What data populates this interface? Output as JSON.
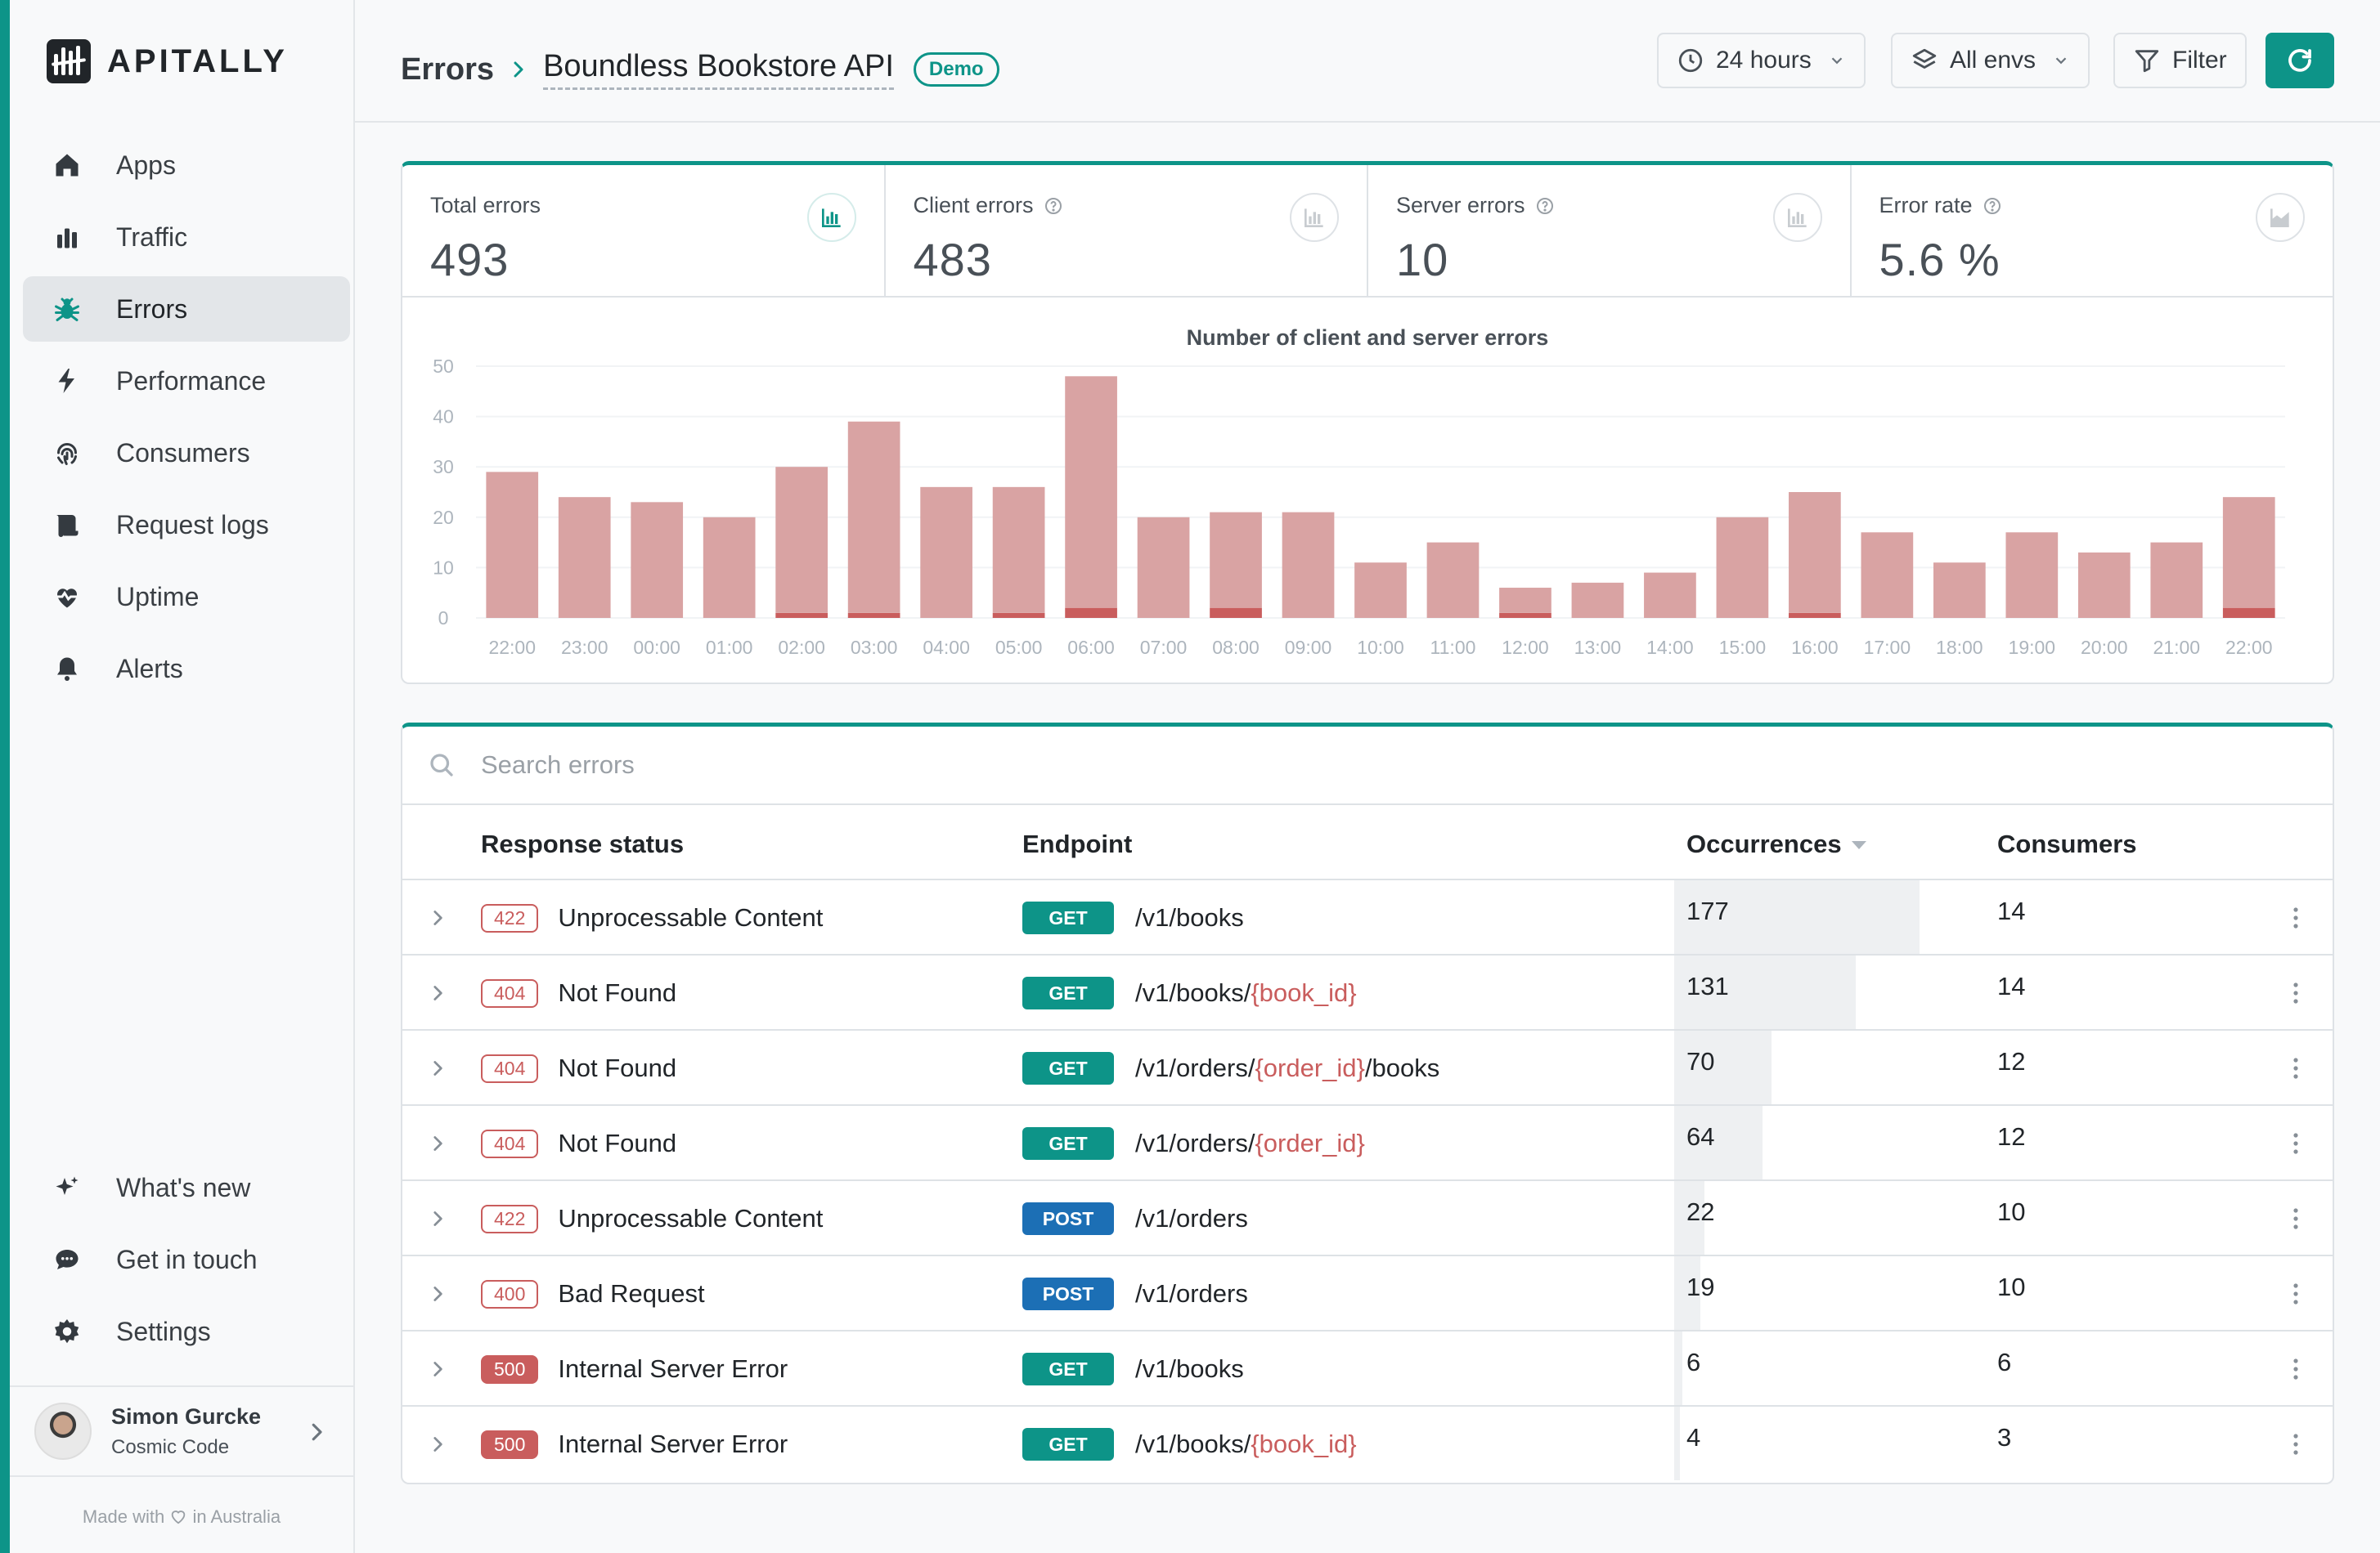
{
  "app": {
    "name": "APITALLY"
  },
  "sidebar": {
    "items": [
      {
        "label": "Apps",
        "icon": "home-icon",
        "active": false
      },
      {
        "label": "Traffic",
        "icon": "bar-chart-icon",
        "active": false
      },
      {
        "label": "Errors",
        "icon": "bug-icon",
        "active": true
      },
      {
        "label": "Performance",
        "icon": "bolt-icon",
        "active": false
      },
      {
        "label": "Consumers",
        "icon": "fingerprint-icon",
        "active": false
      },
      {
        "label": "Request logs",
        "icon": "scroll-icon",
        "active": false
      },
      {
        "label": "Uptime",
        "icon": "heartbeat-icon",
        "active": false
      },
      {
        "label": "Alerts",
        "icon": "bell-icon",
        "active": false
      }
    ],
    "bottom_items": [
      {
        "label": "What's new",
        "icon": "sparkles-icon"
      },
      {
        "label": "Get in touch",
        "icon": "chat-icon"
      },
      {
        "label": "Settings",
        "icon": "gear-icon"
      }
    ],
    "user": {
      "name": "Simon Gurcke",
      "org": "Cosmic Code"
    },
    "footer": {
      "prefix": "Made with",
      "suffix": "in Australia"
    }
  },
  "header": {
    "breadcrumb_root": "Errors",
    "app_name": "Boundless Bookstore API",
    "badge": "Demo",
    "period": "24 hours",
    "env": "All envs",
    "filter": "Filter"
  },
  "stats": [
    {
      "label": "Total errors",
      "value": "493",
      "help": false
    },
    {
      "label": "Client errors",
      "value": "483",
      "help": true
    },
    {
      "label": "Server errors",
      "value": "10",
      "help": true
    },
    {
      "label": "Error rate",
      "value": "5.6 %",
      "help": true
    }
  ],
  "chart_data": {
    "type": "bar",
    "title": "Number of client and server errors",
    "categories": [
      "22:00",
      "23:00",
      "00:00",
      "01:00",
      "02:00",
      "03:00",
      "04:00",
      "05:00",
      "06:00",
      "07:00",
      "08:00",
      "09:00",
      "10:00",
      "11:00",
      "12:00",
      "13:00",
      "14:00",
      "15:00",
      "16:00",
      "17:00",
      "18:00",
      "19:00",
      "20:00",
      "21:00",
      "22:00"
    ],
    "series": [
      {
        "values": [
          29,
          24,
          23,
          20,
          29,
          38,
          26,
          25,
          46,
          20,
          19,
          21,
          11,
          15,
          5,
          7,
          9,
          20,
          24,
          17,
          11,
          17,
          13,
          15,
          22
        ],
        "color": "#d9a3a3"
      },
      {
        "values": [
          0,
          0,
          0,
          0,
          1,
          1,
          0,
          1,
          2,
          0,
          2,
          0,
          0,
          0,
          1,
          0,
          0,
          0,
          1,
          0,
          0,
          0,
          0,
          0,
          2
        ],
        "color": "#c95d5d"
      }
    ],
    "stacked": true,
    "ylim": [
      0,
      50
    ],
    "yticks": [
      0,
      10,
      20,
      30,
      40,
      50
    ],
    "grid": true
  },
  "table": {
    "search_placeholder": "Search errors",
    "columns": {
      "status": "Response status",
      "endpoint": "Endpoint",
      "occurrences": "Occurrences",
      "consumers": "Consumers"
    },
    "rows": [
      {
        "code": "422",
        "status": "Unprocessable Content",
        "method": "GET",
        "path": [
          {
            "t": "/v1/books"
          }
        ],
        "occurrences": 177,
        "consumers": 14,
        "server": false
      },
      {
        "code": "404",
        "status": "Not Found",
        "method": "GET",
        "path": [
          {
            "t": "/v1/books/"
          },
          {
            "t": "{book_id}",
            "p": true
          }
        ],
        "occurrences": 131,
        "consumers": 14,
        "server": false
      },
      {
        "code": "404",
        "status": "Not Found",
        "method": "GET",
        "path": [
          {
            "t": "/v1/orders/"
          },
          {
            "t": "{order_id}",
            "p": true
          },
          {
            "t": "/books"
          }
        ],
        "occurrences": 70,
        "consumers": 12,
        "server": false
      },
      {
        "code": "404",
        "status": "Not Found",
        "method": "GET",
        "path": [
          {
            "t": "/v1/orders/"
          },
          {
            "t": "{order_id}",
            "p": true
          }
        ],
        "occurrences": 64,
        "consumers": 12,
        "server": false
      },
      {
        "code": "422",
        "status": "Unprocessable Content",
        "method": "POST",
        "path": [
          {
            "t": "/v1/orders"
          }
        ],
        "occurrences": 22,
        "consumers": 10,
        "server": false
      },
      {
        "code": "400",
        "status": "Bad Request",
        "method": "POST",
        "path": [
          {
            "t": "/v1/orders"
          }
        ],
        "occurrences": 19,
        "consumers": 10,
        "server": false
      },
      {
        "code": "500",
        "status": "Internal Server Error",
        "method": "GET",
        "path": [
          {
            "t": "/v1/books"
          }
        ],
        "occurrences": 6,
        "consumers": 6,
        "server": true
      },
      {
        "code": "500",
        "status": "Internal Server Error",
        "method": "GET",
        "path": [
          {
            "t": "/v1/books/"
          },
          {
            "t": "{book_id}",
            "p": true
          }
        ],
        "occurrences": 4,
        "consumers": 3,
        "server": true
      }
    ]
  },
  "colors": {
    "accent": "#0d9488",
    "error": "#c95d5d",
    "error_light": "#d9a3a3",
    "post": "#1c6fb5"
  }
}
